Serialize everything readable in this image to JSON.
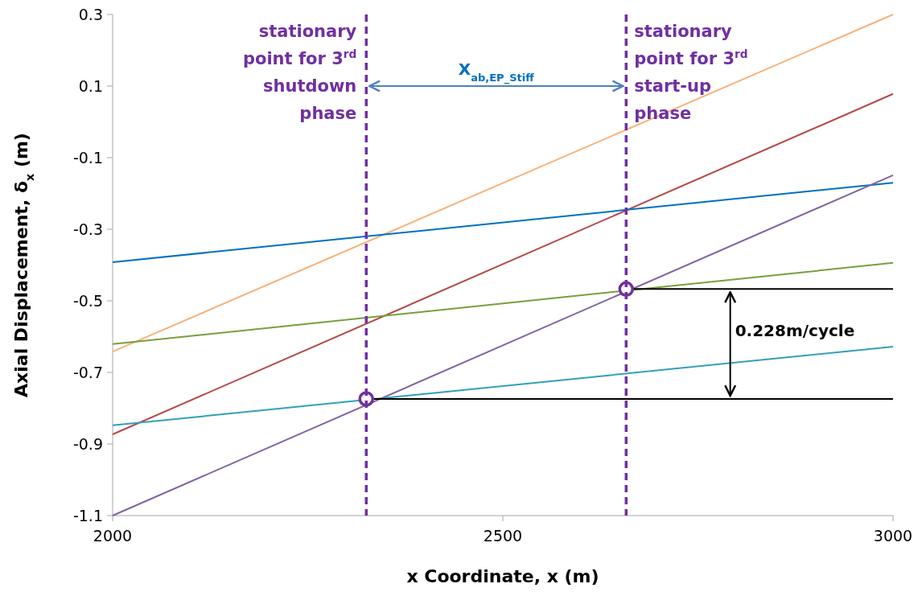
{
  "chart_data": {
    "type": "line",
    "xlabel": "x Coordinate, x (m)",
    "ylabel": "Axial Displacement, δ$_{x}$ (m)",
    "xlim": [
      2000,
      3000
    ],
    "xticks": [
      2000,
      2500,
      3000
    ],
    "ylim": [
      -1.1,
      0.3
    ],
    "yticks": [
      0.3,
      0.1,
      -0.1,
      -0.3,
      -0.5,
      -0.7,
      -0.9,
      -1.1
    ],
    "grid": false,
    "series": [
      {
        "color": "#f9b27a",
        "x": [
          2000,
          3000
        ],
        "values": [
          -0.642,
          0.3
        ]
      },
      {
        "color": "#b54848",
        "x": [
          2000,
          3000
        ],
        "values": [
          -0.873,
          0.078
        ]
      },
      {
        "color": "#0070c0",
        "x": [
          2000,
          3000
        ],
        "values": [
          -0.392,
          -0.17
        ]
      },
      {
        "color": "#77a03b",
        "x": [
          2000,
          3000
        ],
        "values": [
          -0.621,
          -0.394
        ]
      },
      {
        "color": "#31a0b8",
        "x": [
          2000,
          3000
        ],
        "values": [
          -0.848,
          -0.628
        ]
      },
      {
        "color": "#8064a2",
        "x": [
          2000,
          3000
        ],
        "values": [
          -1.1,
          -0.149
        ]
      },
      {
        "color": "#000000",
        "x": [
          2658,
          3000
        ],
        "values": [
          -0.467,
          -0.467
        ]
      },
      {
        "color": "#000000",
        "x": [
          2325,
          3000
        ],
        "values": [
          -0.774,
          -0.774
        ]
      },
      {
        "type": "scatter",
        "marker": "circle",
        "color": "#7030a0",
        "x": [
          2325,
          2658
        ],
        "values": [
          -0.774,
          -0.467
        ]
      }
    ],
    "ref_lines": [
      {
        "axis": "x",
        "value": 2325,
        "label": "stationary\npoint for 3$^{rd}$\nshutdown\nphase",
        "color": "#7030a0",
        "line_style": "dashed"
      },
      {
        "axis": "x",
        "value": 2658,
        "label": "stationary\npoint for 3$^{rd}$\nstart-up\nphase",
        "color": "#7030a0",
        "line_style": "dashed"
      }
    ],
    "annotations": [
      "X$_{ab,EP_Stiff}$",
      "0.228m/cycle"
    ]
  }
}
